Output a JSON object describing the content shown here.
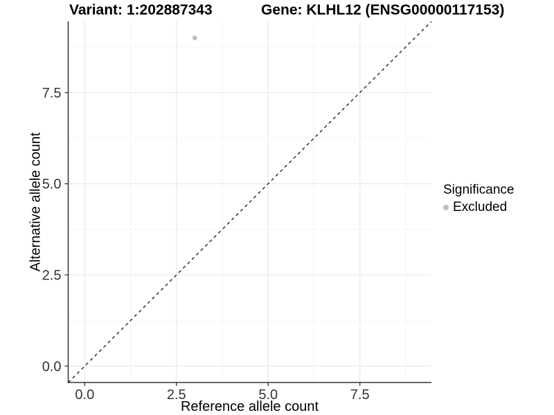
{
  "chart_data": {
    "type": "scatter",
    "titles": {
      "variant": "Variant: 1:202887343",
      "gene": "Gene: KLHL12 (ENSG00000117153)"
    },
    "xlabel": "Reference allele count",
    "ylabel": "Alternative allele count",
    "xlim": [
      -0.45,
      9.45
    ],
    "ylim": [
      -0.45,
      9.45
    ],
    "x_ticks": [
      0,
      2.5,
      5,
      7.5
    ],
    "x_tick_labels": [
      "0.0",
      "2.5",
      "5.0",
      "7.5"
    ],
    "y_ticks": [
      0,
      2.5,
      5,
      7.5
    ],
    "y_tick_labels": [
      "0.0",
      "2.5",
      "5.0",
      "7.5"
    ],
    "points": [
      {
        "x": 3,
        "y": 9,
        "series": "Excluded",
        "color": "#bdbdbd"
      }
    ],
    "reference_line": {
      "type": "identity y=x",
      "style": "dashed",
      "color": "#111111"
    },
    "grid": {
      "major": true,
      "minor": true,
      "major_color": "#e8e8e8",
      "minor_color": "#f4f4f4"
    },
    "axis_color": "#333333",
    "background": "#ffffff",
    "legend": {
      "title": "Significance",
      "position": "right",
      "entries": [
        {
          "label": "Excluded",
          "color": "#bdbdbd"
        }
      ]
    }
  }
}
